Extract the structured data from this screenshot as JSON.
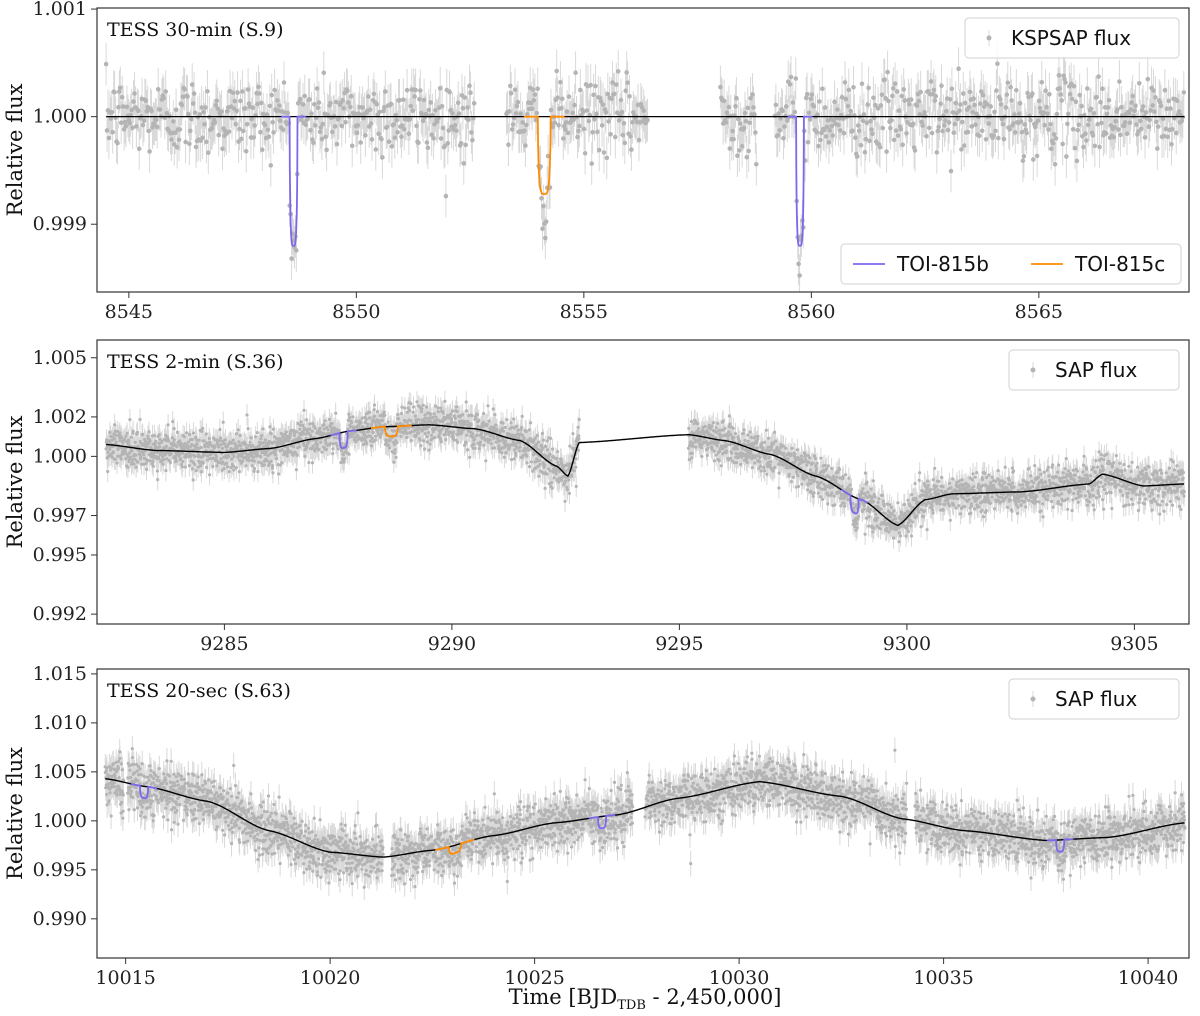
{
  "figure": {
    "xlabel_prefix": "Time [BJD",
    "xlabel_sub": "TDB",
    "xlabel_suffix": " - 2,450,000]"
  },
  "colors": {
    "data": "#b4b4b4",
    "errorbar": "#d9d9d9",
    "model": "#000000",
    "planet_b": "#7b68ee",
    "planet_c": "#ff8c00"
  },
  "chart_data": [
    {
      "type": "scatter",
      "title": "TESS 30-min (S.9)",
      "ylabel": "Relative flux",
      "xlim": [
        8544.3,
        8568.3
      ],
      "ylim": [
        0.99837,
        1.00101
      ],
      "xticks": [
        8545,
        8550,
        8555,
        8560,
        8565
      ],
      "yticks": [
        0.999,
        1.0,
        1.001
      ],
      "ytick_labels": [
        "0.999",
        "1.000",
        "1.001"
      ],
      "data_legend": "KSPSAP flux",
      "planet_legend": [
        "TOI-815b",
        "TOI-815c"
      ],
      "segments": [
        [
          8544.5,
          8552.6
        ],
        [
          8553.3,
          8556.4
        ],
        [
          8558.0,
          8558.8
        ],
        [
          8559.2,
          8568.2
        ]
      ],
      "noise": 0.00022,
      "trend": [
        [
          8544.5,
          1.0
        ],
        [
          8568.2,
          1.0
        ]
      ],
      "transits": [
        {
          "planet": "b",
          "t0": 8548.62,
          "depth": 0.0012,
          "dur": 0.17
        },
        {
          "planet": "c",
          "t0": 8554.13,
          "depth": 0.00072,
          "dur": 0.28
        },
        {
          "planet": "b",
          "t0": 8559.75,
          "depth": 0.0012,
          "dur": 0.17
        }
      ]
    },
    {
      "type": "scatter",
      "title": "TESS 2-min (S.36)",
      "ylabel": "Relative flux",
      "xlim": [
        9282.2,
        9306.2
      ],
      "ylim": [
        0.9915,
        1.0059
      ],
      "xticks": [
        9285,
        9290,
        9295,
        9300,
        9305
      ],
      "yticks": [
        0.992,
        0.995,
        0.997,
        1.0,
        1.002,
        1.005
      ],
      "ytick_labels": [
        "0.992",
        "0.995",
        "0.997",
        "1.000",
        "1.002",
        "1.005"
      ],
      "data_legend": "SAP flux",
      "segments": [
        [
          9282.4,
          9292.8
        ],
        [
          9295.2,
          9306.1
        ]
      ],
      "noise": 0.0009,
      "trend": [
        [
          9282.4,
          1.0006
        ],
        [
          9283.5,
          1.0003
        ],
        [
          9285.0,
          1.0002
        ],
        [
          9286.0,
          1.0004
        ],
        [
          9287.0,
          1.0009
        ],
        [
          9287.8,
          1.0013
        ],
        [
          9288.5,
          1.0015
        ],
        [
          9289.5,
          1.0016
        ],
        [
          9290.5,
          1.0014
        ],
        [
          9291.5,
          1.0008
        ],
        [
          9292.3,
          0.9995
        ],
        [
          9292.55,
          0.999
        ],
        [
          9292.8,
          1.0007
        ],
        [
          9295.2,
          1.0011
        ],
        [
          9296.0,
          1.0008
        ],
        [
          9297.0,
          1.0001
        ],
        [
          9298.0,
          0.999
        ],
        [
          9299.0,
          0.9978
        ],
        [
          9299.8,
          0.9965
        ],
        [
          9300.4,
          0.9978
        ],
        [
          9301.0,
          0.9981
        ],
        [
          9302.5,
          0.9982
        ],
        [
          9304.0,
          0.9986
        ],
        [
          9304.3,
          0.9991
        ],
        [
          9305.2,
          0.9985
        ],
        [
          9306.1,
          0.9986
        ]
      ],
      "transits": [
        {
          "planet": "b",
          "t0": 9287.62,
          "depth": 0.0008,
          "dur": 0.18
        },
        {
          "planet": "c",
          "t0": 9288.67,
          "depth": 0.0005,
          "dur": 0.28
        },
        {
          "planet": "b",
          "t0": 9298.85,
          "depth": 0.0008,
          "dur": 0.18
        }
      ]
    },
    {
      "type": "scatter",
      "title": "TESS 20-sec (S.63)",
      "ylabel": "Relative flux",
      "xlim": [
        10014.3,
        10041.0
      ],
      "ylim": [
        0.986,
        1.0155
      ],
      "xticks": [
        10015,
        10020,
        10025,
        10030,
        10035,
        10040
      ],
      "yticks": [
        0.99,
        0.995,
        1.0,
        1.005,
        1.01,
        1.015
      ],
      "ytick_labels": [
        "0.990",
        "0.995",
        "1.000",
        "1.005",
        "1.010",
        "1.015"
      ],
      "data_legend": "SAP flux",
      "segments": [
        [
          10014.5,
          10014.95
        ],
        [
          10015.05,
          10021.3
        ],
        [
          10021.5,
          10027.4
        ],
        [
          10027.7,
          10034.1
        ],
        [
          10034.3,
          10040.9
        ]
      ],
      "noise": 0.0022,
      "trend": [
        [
          10014.5,
          1.0043
        ],
        [
          10015.5,
          1.0035
        ],
        [
          10017.0,
          1.002
        ],
        [
          10018.5,
          0.999
        ],
        [
          10020.0,
          0.9968
        ],
        [
          10021.3,
          0.9963
        ],
        [
          10022.5,
          0.997
        ],
        [
          10024.0,
          0.9985
        ],
        [
          10025.5,
          0.9998
        ],
        [
          10027.0,
          1.0006
        ],
        [
          10028.5,
          1.0023
        ],
        [
          10030.5,
          1.004
        ],
        [
          10032.5,
          1.0025
        ],
        [
          10034.0,
          1.0002
        ],
        [
          10035.5,
          0.999
        ],
        [
          10037.5,
          0.998
        ],
        [
          10039.0,
          0.9983
        ],
        [
          10040.9,
          0.9998
        ]
      ],
      "transits": [
        {
          "planet": "b",
          "t0": 10015.45,
          "depth": 0.0012,
          "dur": 0.2
        },
        {
          "planet": "c",
          "t0": 10023.05,
          "depth": 0.0008,
          "dur": 0.3
        },
        {
          "planet": "b",
          "t0": 10026.65,
          "depth": 0.0012,
          "dur": 0.2
        },
        {
          "planet": "b",
          "t0": 10037.85,
          "depth": 0.0012,
          "dur": 0.2
        }
      ]
    }
  ]
}
